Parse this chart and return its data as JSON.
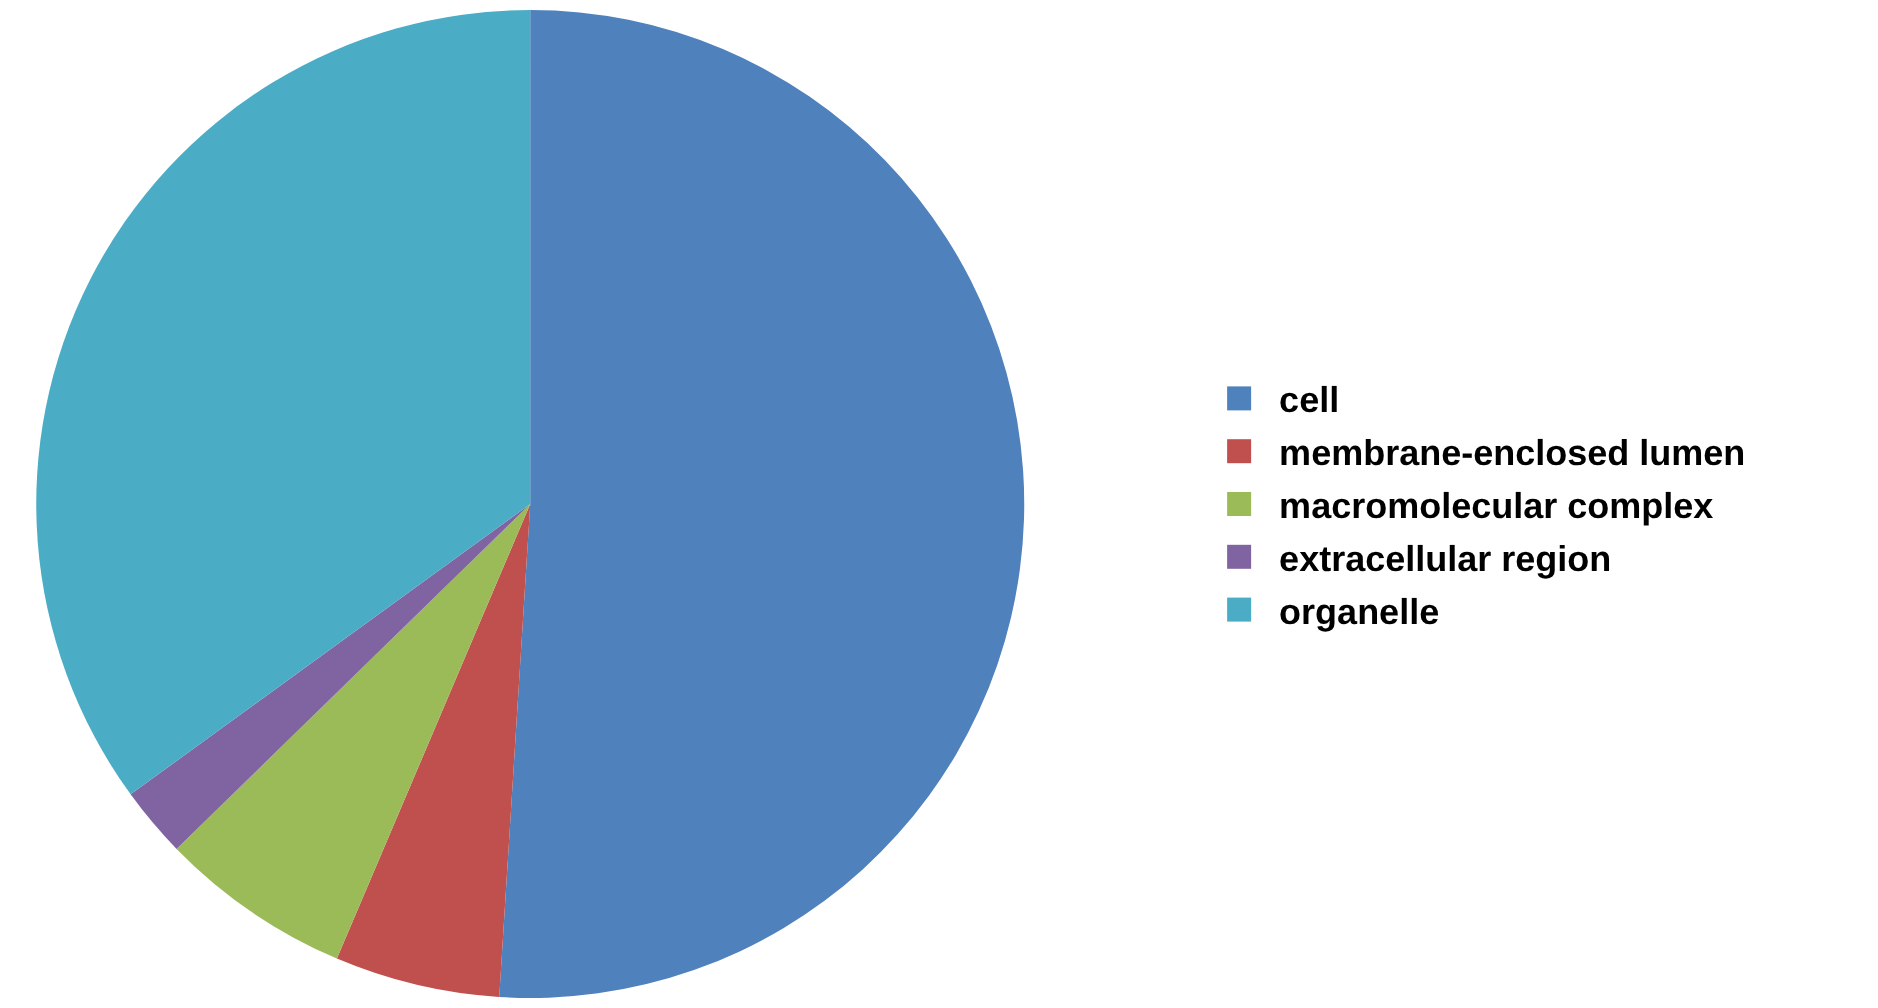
{
  "chart_data": {
    "type": "pie",
    "categories": [
      "cell",
      "membrane-enclosed lumen",
      "macromolecular complex",
      "extracellular region",
      "organelle"
    ],
    "values": [
      51,
      5.4,
      6.3,
      2.3,
      35
    ],
    "colors": [
      "#4f81bd",
      "#c0504d",
      "#9bbb59",
      "#8064a2",
      "#4bacc6"
    ],
    "legend": "right"
  }
}
